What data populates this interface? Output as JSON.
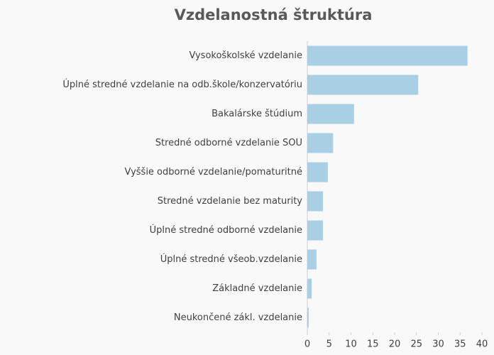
{
  "chart_data": {
    "type": "bar",
    "orientation": "horizontal",
    "title": "Vzdelanostná štruktúra",
    "categories": [
      "Vysokoškolské vzdelanie",
      "Úplné stredné vzdelanie na odb.škole/konzervatóriu",
      "Bakalárske štúdium",
      "Stredné odborné vzdelanie SOU",
      "Vyššie odborné vzdelanie/pomaturitné",
      "Stredné vzdelanie bez maturity",
      "Úplné stredné odborné vzdelanie",
      "Úplné stredné všeob.vzdelanie",
      "Základné vzdelanie",
      "Neukončené zákl. vzdelanie"
    ],
    "values": [
      36.7,
      25.4,
      10.7,
      5.9,
      4.7,
      3.6,
      3.6,
      2.1,
      1.0,
      0.3
    ],
    "color": "#a9cfe4",
    "xlim": [
      0,
      40
    ],
    "xticks": [
      0,
      5,
      10,
      15,
      20,
      25,
      30,
      35,
      40
    ],
    "grid": false
  }
}
